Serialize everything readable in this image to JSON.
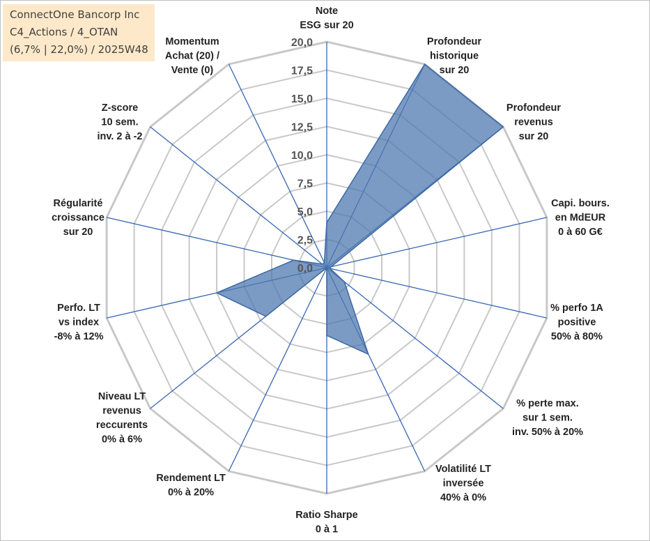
{
  "info": {
    "company": "ConnectOne Bancorp Inc",
    "category": "C4_Actions / 4_OTAN",
    "params": "(6,7% | 22,0%) / 2025W48"
  },
  "chart_data": {
    "type": "radar",
    "rmax": 20,
    "rings": [
      0,
      2.5,
      5,
      7.5,
      10,
      12.5,
      15,
      17.5,
      20
    ],
    "tick_labels": [
      "0,0",
      "2,5",
      "5,0",
      "7,5",
      "10,0",
      "12,5",
      "15,0",
      "17,5",
      "20,0"
    ],
    "grid": true,
    "colors": {
      "fill": "#4f7ab0",
      "stroke": "#3c68a4",
      "grid": "#c8c8c8",
      "spoke": "#3566b0"
    },
    "axes": [
      {
        "lines": [
          "Note",
          "ESG sur 20"
        ],
        "value": 4.0
      },
      {
        "lines": [
          "Profondeur",
          "historique",
          "sur 20"
        ],
        "value": 20.0
      },
      {
        "lines": [
          "Profondeur",
          "revenus",
          "sur 20"
        ],
        "value": 20.0
      },
      {
        "lines": [
          "Capi. bours.",
          "en MdEUR",
          "0 à 60 G€"
        ],
        "value": 0.4
      },
      {
        "lines": [
          "% perfo 1A",
          "positive",
          "50% à 80%"
        ],
        "value": 0.3
      },
      {
        "lines": [
          "% perte max.",
          "sur 1 sem.",
          "inv. 50% à 20%"
        ],
        "value": 2.0
      },
      {
        "lines": [
          "Volatilité LT",
          "inversée",
          "40% à 0%"
        ],
        "value": 8.5
      },
      {
        "lines": [
          "Ratio Sharpe",
          "0 à 1"
        ],
        "value": 6.0
      },
      {
        "lines": [
          "Rendement LT",
          "0% à 20%"
        ],
        "value": 0.0
      },
      {
        "lines": [
          "Niveau LT",
          "revenus",
          "reccurents",
          "0% à 6%"
        ],
        "value": 6.9
      },
      {
        "lines": [
          "Perfo. LT",
          "vs index",
          "-8% à 12%"
        ],
        "value": 10.0
      },
      {
        "lines": [
          "Régularité",
          "croissance",
          "sur 20"
        ],
        "value": 3.0
      },
      {
        "lines": [
          "Z-score",
          "10 sem.",
          "inv. 2 à -2"
        ],
        "value": 0.5
      },
      {
        "lines": [
          "Momentum",
          "Achat (20) /",
          "Vente (0)"
        ],
        "value": 0.5
      }
    ]
  }
}
